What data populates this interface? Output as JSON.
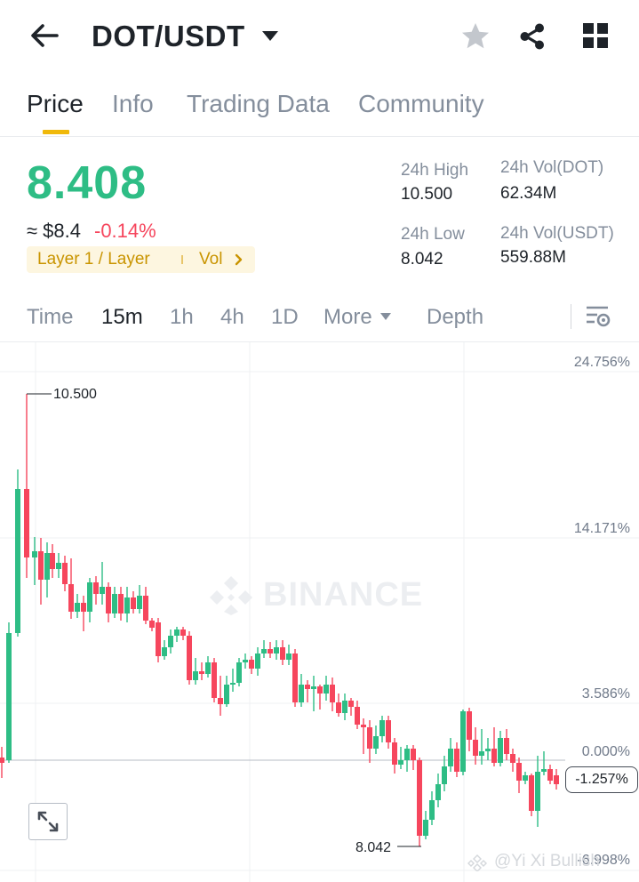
{
  "header": {
    "pair": "DOT/USDT",
    "icons": [
      "back-arrow-icon",
      "caret-down-icon",
      "star-icon",
      "share-icon",
      "grid-icon"
    ]
  },
  "tabs": [
    {
      "label": "Price",
      "active": true
    },
    {
      "label": "Info",
      "active": false
    },
    {
      "label": "Trading Data",
      "active": false
    },
    {
      "label": "Community",
      "active": false
    }
  ],
  "ticker": {
    "price": "8.408",
    "approx_usd": "≈ $8.4",
    "change": "-0.14%",
    "tag_label": "Layer 1 / Layer",
    "tag_vol": "Vol",
    "high_label": "24h High",
    "high_value": "10.500",
    "low_label": "24h Low",
    "low_value": "8.042",
    "vol_base_label": "24h Vol(DOT)",
    "vol_base_value": "62.34M",
    "vol_quote_label": "24h Vol(USDT)",
    "vol_quote_value": "559.88M"
  },
  "intervals": [
    {
      "label": "Time",
      "active": false
    },
    {
      "label": "15m",
      "active": true
    },
    {
      "label": "1h",
      "active": false
    },
    {
      "label": "4h",
      "active": false
    },
    {
      "label": "1D",
      "active": false
    },
    {
      "label": "More",
      "active": false
    },
    {
      "label": "Depth",
      "active": false
    }
  ],
  "chart": {
    "pct_labels": [
      "24.756%",
      "14.171%",
      "3.586%",
      "0.000%",
      "-6.998%"
    ],
    "current_pct": "-1.257%",
    "high_marker": "10.500",
    "low_marker": "8.042",
    "watermark": "BINANCE",
    "credit": "@Yi Xi Bullish"
  },
  "colors": {
    "up": "#2ebd85",
    "down": "#f6465d",
    "accent": "#f0b90b",
    "text_primary": "#1e2329",
    "text_secondary": "#848e9c"
  }
}
